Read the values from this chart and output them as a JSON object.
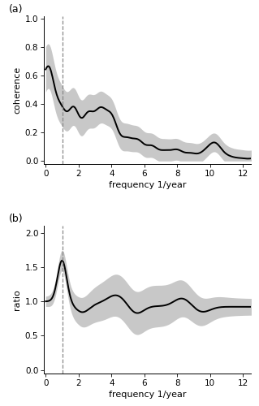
{
  "panel_a": {
    "label": "(a)",
    "ylabel": "coherence",
    "xlabel": "frequency 1/year",
    "xlim": [
      -0.1,
      12.5
    ],
    "ylim": [
      -0.02,
      1.02
    ],
    "yticks": [
      0.0,
      0.2,
      0.4,
      0.6,
      0.8,
      1.0
    ],
    "xticks": [
      0,
      2,
      4,
      6,
      8,
      10,
      12
    ],
    "dashed_x": 1.0,
    "line_color": "#000000",
    "fill_color": "#bbbbbb",
    "fill_alpha": 0.8
  },
  "panel_b": {
    "label": "(b)",
    "ylabel": "ratio",
    "xlabel": "frequency 1/year",
    "xlim": [
      -0.1,
      12.5
    ],
    "ylim": [
      -0.05,
      2.1
    ],
    "yticks": [
      0.0,
      0.5,
      1.0,
      1.5,
      2.0
    ],
    "xticks": [
      0,
      2,
      4,
      6,
      8,
      10,
      12
    ],
    "dashed_x": 1.0,
    "line_color": "#000000",
    "fill_color": "#bbbbbb",
    "fill_alpha": 0.8
  },
  "bg_color": "#ffffff",
  "spine_color": "#000000",
  "label_fontsize": 8,
  "tick_fontsize": 7.5,
  "panel_label_fontsize": 9
}
